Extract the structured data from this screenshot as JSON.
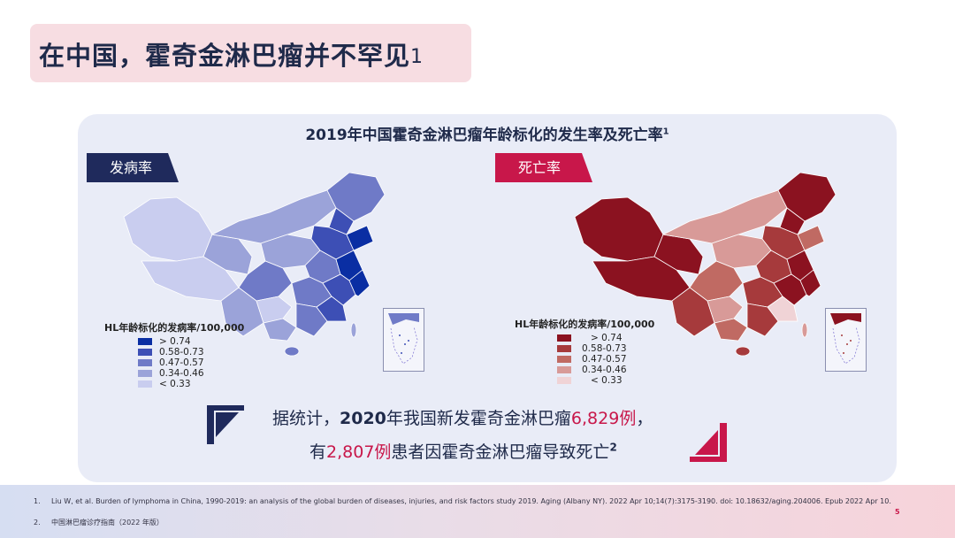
{
  "title": {
    "main": "在中国，霍奇金淋巴瘤并不罕见",
    "sup": "1"
  },
  "panel": {
    "title": "2019年中国霍奇金淋巴瘤年龄标化的发生率及死亡率",
    "title_sup": "1",
    "left": {
      "tag": "发病率",
      "tag_color": "#1f2a5c",
      "legend_title": "HL年龄标化的发病率/100,000",
      "legend": [
        {
          "label": "> 0.74",
          "color": "#0a2ea3"
        },
        {
          "label": "0.58-0.73",
          "color": "#3d4fb5"
        },
        {
          "label": "0.47-0.57",
          "color": "#6f7ac7"
        },
        {
          "label": "0.34-0.46",
          "color": "#9ba3d9"
        },
        {
          "label": "< 0.33",
          "color": "#c9cdef"
        }
      ]
    },
    "right": {
      "tag": "死亡率",
      "tag_color": "#c8174a",
      "legend_title": "HL年龄标化的发病率/100,000",
      "legend": [
        {
          "label": "> 0.74",
          "color": "#8b1220"
        },
        {
          "label": "0.58-0.73",
          "color": "#a63a3c"
        },
        {
          "label": "0.47-0.57",
          "color": "#c06a63"
        },
        {
          "label": "0.34-0.46",
          "color": "#d89a98"
        },
        {
          "label": "< 0.33",
          "color": "#f0d3d6"
        }
      ]
    }
  },
  "stats": {
    "line1_prefix": "据统计，",
    "line1_year": "2020",
    "line1_mid": "年我国新发霍奇金淋巴瘤",
    "line1_highlight": "6,829例",
    "line1_end": "，",
    "line2_prefix": "有",
    "line2_highlight": "2,807例",
    "line2_mid": "患者因霍奇金淋巴瘤导致死亡",
    "line2_sup": "2"
  },
  "references": [
    {
      "num": "1.",
      "text": "Liu W, et al. Burden of lymphoma in China, 1990-2019: an analysis of the global burden of diseases, injuries, and risk factors study 2019. Aging (Albany NY). 2022 Apr 10;14(7):3175-3190. doi: 10.18632/aging.204006. Epub 2022 Apr 10."
    },
    {
      "num": "2.",
      "text": "中国淋巴瘤诊疗指南（2022 年版）"
    }
  ],
  "page_number": "5"
}
